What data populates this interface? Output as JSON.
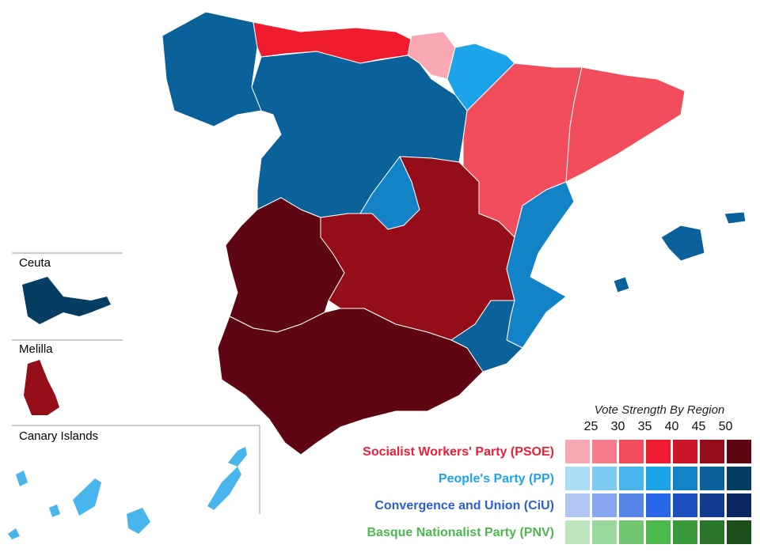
{
  "insets": [
    "Ceuta",
    "Melilla",
    "Canary Islands"
  ],
  "legend": {
    "title": "Vote Strength By Region",
    "scale": [
      25,
      30,
      35,
      40,
      45,
      50
    ],
    "parties": [
      {
        "name": "Socialist Workers' Party (PSOE)",
        "color": "#e8203a",
        "swatches": [
          "#f9a8b4",
          "#f77d8a",
          "#f24d5c",
          "#ee1c2e",
          "#cc1427",
          "#960d1a",
          "#5e0712"
        ]
      },
      {
        "name": "People's Party (PP)",
        "color": "#1da4e8",
        "swatches": [
          "#aadcf5",
          "#7dcaf2",
          "#48b5ec",
          "#1da4e8",
          "#1383c8",
          "#0b619a",
          "#053e62"
        ]
      },
      {
        "name": "Convergence and Union (CiU)",
        "color": "#2a5fd0",
        "swatches": [
          "#b3c6f2",
          "#86a6ef",
          "#5886e8",
          "#2767e8",
          "#1c4fc2",
          "#133a91",
          "#0b2562"
        ]
      },
      {
        "name": "Basque Nationalist Party (PNV)",
        "color": "#4cb94c",
        "swatches": [
          "#bfe5bf",
          "#9bd89b",
          "#72c872",
          "#4cb94c",
          "#3a9a3a",
          "#2b742b",
          "#1c4f1c"
        ]
      }
    ]
  }
}
